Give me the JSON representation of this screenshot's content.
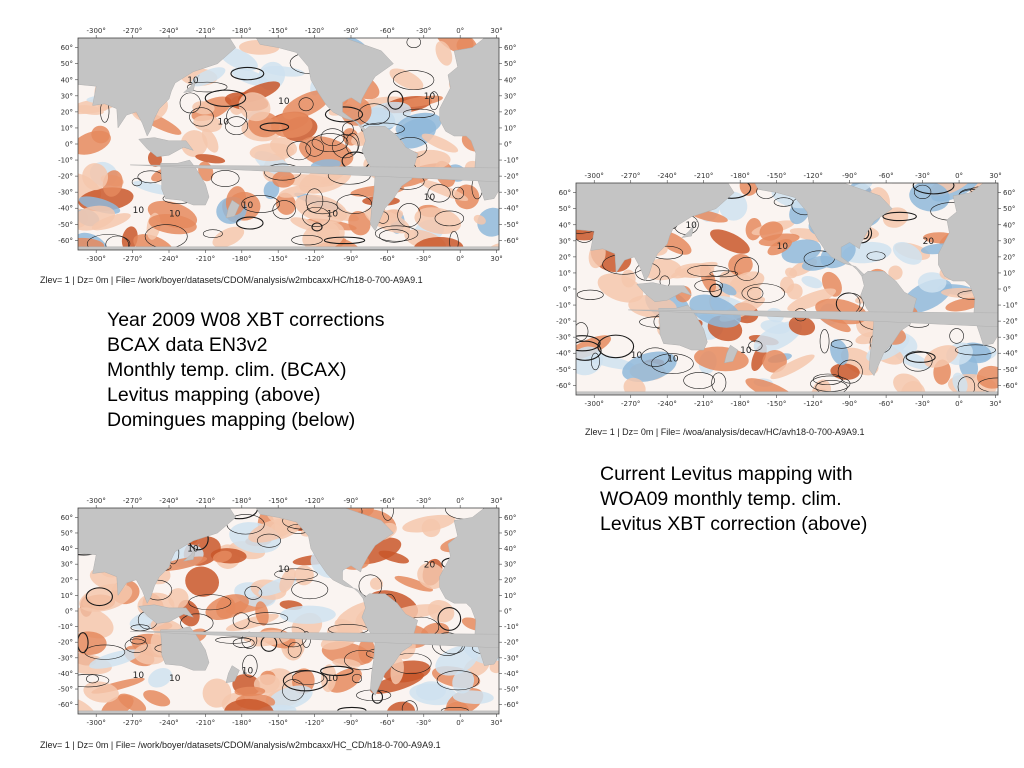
{
  "maps": [
    {
      "id": "top-left",
      "caption": "Zlev= 1 | Dz=    0m | File= /work/boyer/datasets/CDOM/analysis/w2mbcaxx/HC/h18-0-700-A9A9.1",
      "lon_ticks": [
        "-300°",
        "-270°",
        "-240°",
        "-210°",
        "-180°",
        "-150°",
        "-120°",
        "-90°",
        "-60°",
        "-30°",
        "0°",
        "30°"
      ],
      "lat_ticks": [
        "60°",
        "50°",
        "40°",
        "30°",
        "20°",
        "10°",
        "0°",
        "-10°",
        "-20°",
        "-30°",
        "-40°",
        "-50°",
        "-60°"
      ],
      "contour_labels": [
        "10",
        "10",
        "10",
        "10",
        "10",
        "10",
        "10",
        "10",
        "10"
      ]
    },
    {
      "id": "right",
      "caption": "Zlev= 1 | Dz=    0m | File= /woa/analysis/decav/HC/avh18-0-700-A9A9.1",
      "lon_ticks": [
        "-300°",
        "-270°",
        "-240°",
        "-210°",
        "-180°",
        "-150°",
        "-120°",
        "-90°",
        "-60°",
        "-30°",
        "0°",
        "30°"
      ],
      "lat_ticks": [
        "60°",
        "50°",
        "40°",
        "30°",
        "20°",
        "10°",
        "0°",
        "-10°",
        "-20°",
        "-30°",
        "-40°",
        "-50°",
        "-60°"
      ],
      "contour_labels": [
        "10",
        "10",
        "20",
        "10",
        "10",
        "10"
      ]
    },
    {
      "id": "bottom-left",
      "caption": "Zlev= 1 | Dz=    0m | File= /work/boyer/datasets/CDOM/analysis/w2mbcaxx/HC_CD/h18-0-700-A9A9.1",
      "lon_ticks": [
        "-300°",
        "-270°",
        "-240°",
        "-210°",
        "-180°",
        "-150°",
        "-120°",
        "-90°",
        "-60°",
        "-30°",
        "0°",
        "30°"
      ],
      "lat_ticks": [
        "60°",
        "50°",
        "40°",
        "30°",
        "20°",
        "10°",
        "0°",
        "-10°",
        "-20°",
        "-30°",
        "-40°",
        "-50°",
        "-60°"
      ],
      "contour_labels": [
        "10",
        "10",
        "20",
        "10",
        "10",
        "10",
        "10"
      ]
    }
  ],
  "left_text": [
    "Year 2009 W08 XBT corrections",
    "BCAX data EN3v2",
    "Monthly temp. clim. (BCAX)",
    "Levitus mapping (above)",
    "Domingues mapping (below)"
  ],
  "right_text": [
    "Current Levitus mapping with",
    "WOA09 monthly temp. clim.",
    "Levitus XBT correction (above)"
  ],
  "colors": {
    "land": "#c4c4c4",
    "warm_strong": "#c9572a",
    "warm_mid": "#e58a5e",
    "warm_light": "#f5c7ad",
    "neutral": "#faf4f1",
    "cool_light": "#cfe2f0",
    "cool_mid": "#8fb9da",
    "contour": "#1a1a1a"
  }
}
